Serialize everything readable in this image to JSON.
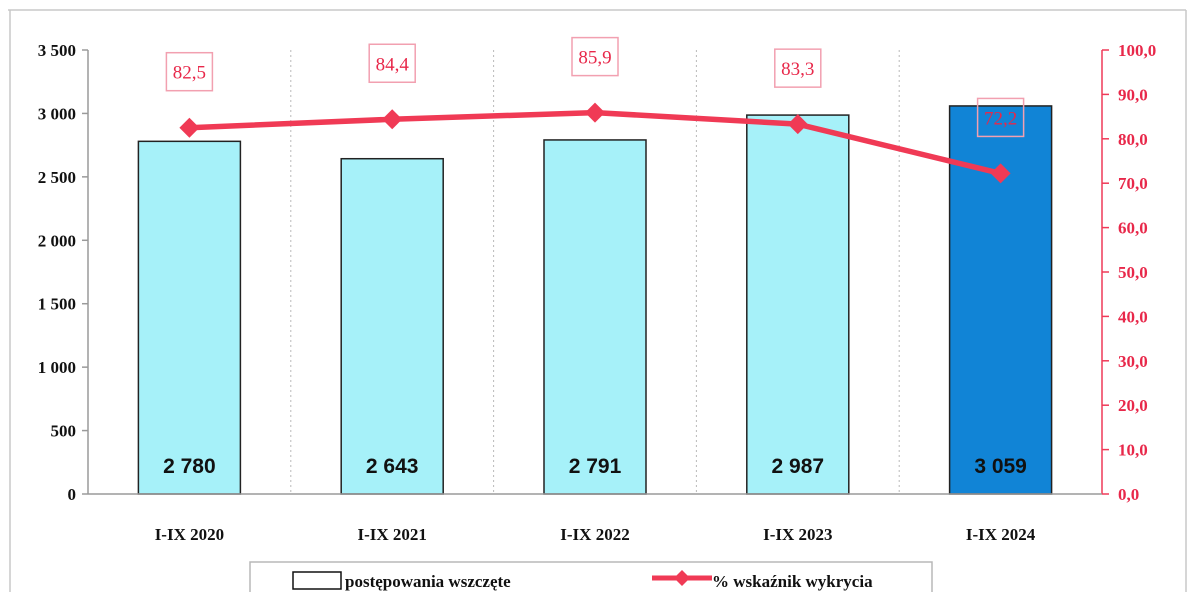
{
  "chart_data": {
    "type": "bar",
    "categories": [
      "I-IX 2020",
      "I-IX 2021",
      "I-IX 2022",
      "I-IX 2023",
      "I-IX 2024"
    ],
    "series": [
      {
        "name": "postępowania wszczęte",
        "type": "bar",
        "axis": "left",
        "values": [
          2780,
          2643,
          2791,
          2987,
          3059
        ],
        "value_labels": [
          "2 780",
          "2 643",
          "2 791",
          "2 987",
          "3 059"
        ],
        "colors": [
          "#a6f1f9",
          "#a6f1f9",
          "#a6f1f9",
          "#a6f1f9",
          "#1184d6"
        ]
      },
      {
        "name": "% wskaźnik wykrycia",
        "type": "line",
        "axis": "right",
        "values": [
          82.5,
          84.4,
          85.9,
          83.3,
          72.2
        ],
        "value_labels": [
          "82,5",
          "84,4",
          "85,9",
          "83,3",
          "72,2"
        ],
        "color": "#f03a55"
      }
    ],
    "y_left": {
      "ylim": [
        0,
        3500
      ],
      "ticks": [
        0,
        500,
        1000,
        1500,
        2000,
        2500,
        3000,
        3500
      ],
      "tick_labels": [
        "0",
        "500",
        "1 000",
        "1 500",
        "2 000",
        "2 500",
        "3 000",
        "3 500"
      ]
    },
    "y_right": {
      "ylim": [
        0,
        100
      ],
      "ticks": [
        0,
        10,
        20,
        30,
        40,
        50,
        60,
        70,
        80,
        90,
        100
      ],
      "tick_labels": [
        "0,0",
        "10,0",
        "20,0",
        "30,0",
        "40,0",
        "50,0",
        "60,0",
        "70,0",
        "80,0",
        "90,0",
        "100,0"
      ],
      "color": "#e8284a"
    },
    "grid": "vertical dotted",
    "legend": {
      "placement": "bottom",
      "items": [
        "postępowania wszczęte",
        "% wskaźnik wykrycia"
      ]
    }
  }
}
